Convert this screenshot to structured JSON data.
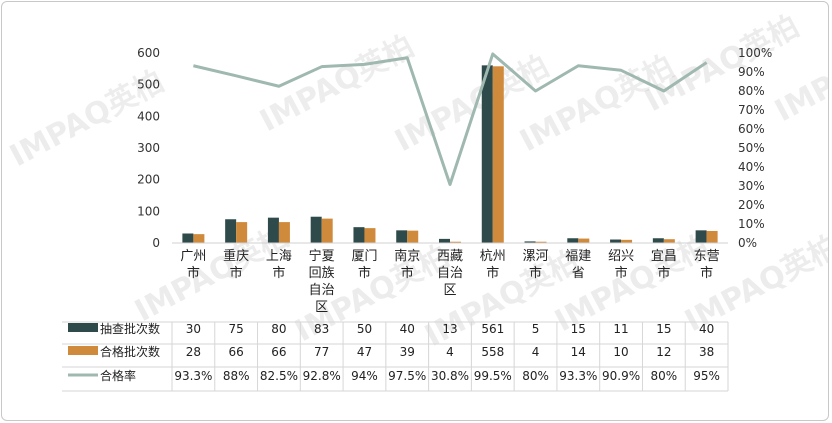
{
  "chart_data": {
    "type": "bar",
    "categories": [
      "广州市",
      "重庆市",
      "上海市",
      "宁夏回族自治区",
      "厦门市",
      "南京市",
      "西藏自治区",
      "杭州市",
      "漯河市",
      "福建省",
      "绍兴市",
      "宜昌市",
      "东营市"
    ],
    "category_lines": [
      [
        "广州",
        "市"
      ],
      [
        "重庆",
        "市"
      ],
      [
        "上海",
        "市"
      ],
      [
        "宁夏",
        "回族",
        "自治",
        "区"
      ],
      [
        "厦门",
        "市"
      ],
      [
        "南京",
        "市"
      ],
      [
        "西藏",
        "自治",
        "区"
      ],
      [
        "杭州",
        "市"
      ],
      [
        "漯河",
        "市"
      ],
      [
        "福建",
        "省"
      ],
      [
        "绍兴",
        "市"
      ],
      [
        "宜昌",
        "市"
      ],
      [
        "东营",
        "市"
      ]
    ],
    "series": [
      {
        "name": "抽查批次数",
        "type": "bar",
        "axis": "left",
        "color": "#2e4a4a",
        "values": [
          30,
          75,
          80,
          83,
          50,
          40,
          13,
          561,
          5,
          15,
          11,
          15,
          40
        ]
      },
      {
        "name": "合格批次数",
        "type": "bar",
        "axis": "left",
        "color": "#d08a3c",
        "values": [
          28,
          66,
          66,
          77,
          47,
          39,
          4,
          558,
          4,
          14,
          10,
          12,
          38
        ]
      },
      {
        "name": "合格率",
        "type": "line",
        "axis": "right",
        "color": "#9fb8b0",
        "values": [
          93.3,
          88,
          82.5,
          92.8,
          94,
          97.5,
          30.8,
          99.5,
          80,
          93.3,
          90.9,
          80,
          95
        ],
        "labels": [
          "93.3%",
          "88%",
          "82.5%",
          "92.8%",
          "94%",
          "97.5%",
          "30.8%",
          "99.5%",
          "80%",
          "93.3%",
          "90.9%",
          "80%",
          "95%"
        ]
      }
    ],
    "left_axis": {
      "ylim": [
        0,
        600
      ],
      "ticks": [
        "0",
        "100",
        "200",
        "300",
        "400",
        "500",
        "600"
      ],
      "tick_values": [
        0,
        100,
        200,
        300,
        400,
        500,
        600
      ]
    },
    "right_axis": {
      "ylim": [
        0,
        100
      ],
      "ticks": [
        "0%",
        "10%",
        "20%",
        "30%",
        "40%",
        "50%",
        "60%",
        "70%",
        "80%",
        "90%",
        "100%"
      ],
      "tick_values": [
        0,
        10,
        20,
        30,
        40,
        50,
        60,
        70,
        80,
        90,
        100
      ]
    },
    "grid": false,
    "legend": "bottom data table"
  },
  "watermark": "IMPAQ英柏"
}
